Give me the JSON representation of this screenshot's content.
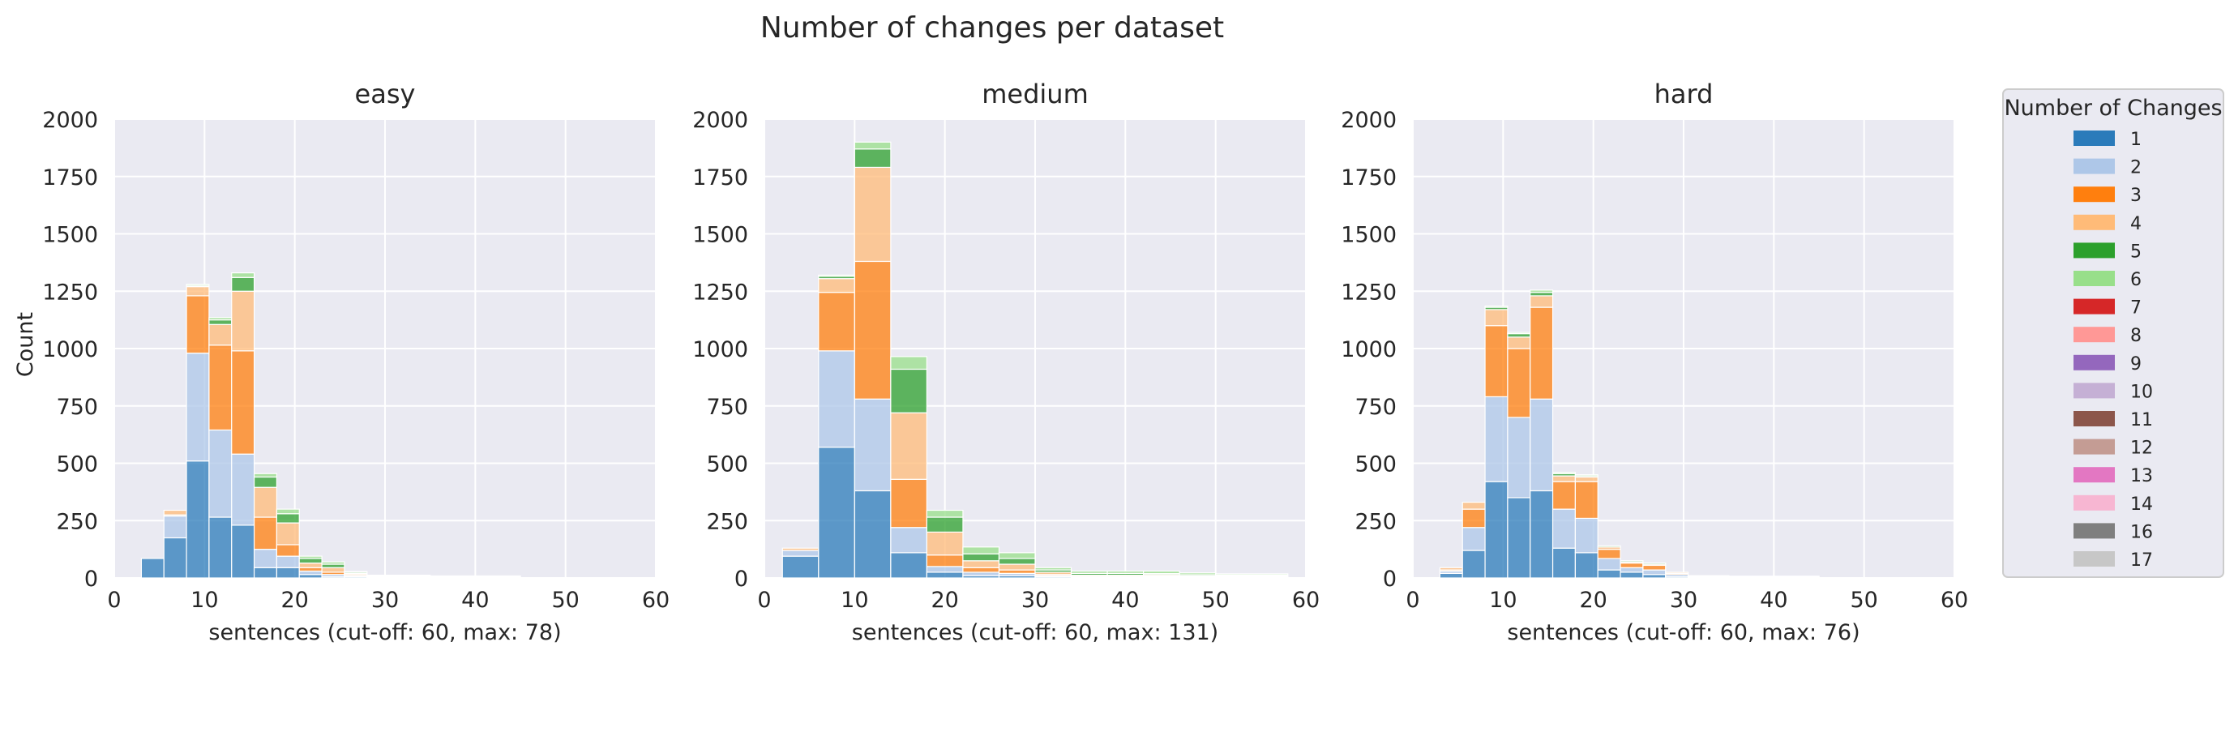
{
  "figure_title": "Number of changes per dataset",
  "chart_data": {
    "type": "bar",
    "stacked": true,
    "suptitle": "Number of changes per dataset",
    "x_range": [
      0,
      60
    ],
    "y_range": [
      0,
      2000
    ],
    "x_ticks": [
      0,
      10,
      20,
      30,
      40,
      50,
      60
    ],
    "y_ticks": [
      0,
      250,
      500,
      750,
      1000,
      1250,
      1500,
      1750,
      2000
    ],
    "ylabel": "Count",
    "grid": true,
    "legend": {
      "title": "Number of Changes",
      "placement": "right",
      "entries": [
        {
          "label": "1",
          "color": "#2b7bba"
        },
        {
          "label": "2",
          "color": "#aec7e8"
        },
        {
          "label": "3",
          "color": "#ff7f0e"
        },
        {
          "label": "4",
          "color": "#ffbb78"
        },
        {
          "label": "5",
          "color": "#2ca02c"
        },
        {
          "label": "6",
          "color": "#98df8a"
        },
        {
          "label": "7",
          "color": "#d62728"
        },
        {
          "label": "8",
          "color": "#ff9896"
        },
        {
          "label": "9",
          "color": "#9467bd"
        },
        {
          "label": "10",
          "color": "#c5b0d5"
        },
        {
          "label": "11",
          "color": "#8c564b"
        },
        {
          "label": "12",
          "color": "#c49c94"
        },
        {
          "label": "13",
          "color": "#e377c2"
        },
        {
          "label": "14",
          "color": "#f7b6d2"
        },
        {
          "label": "16",
          "color": "#7f7f7f"
        },
        {
          "label": "17",
          "color": "#c7c7c7"
        }
      ]
    },
    "panels": [
      {
        "title": "easy",
        "xlabel": "sentences (cut-off: 60, max: 78)",
        "bars": [
          {
            "x0": 3.0,
            "x1": 5.5,
            "stack": [
              85,
              0,
              0,
              0,
              0,
              0
            ]
          },
          {
            "x0": 5.5,
            "x1": 8.0,
            "stack": [
              175,
              95,
              5,
              20,
              0,
              0
            ]
          },
          {
            "x0": 8.0,
            "x1": 10.5,
            "stack": [
              510,
              470,
              250,
              40,
              5,
              5
            ]
          },
          {
            "x0": 10.5,
            "x1": 13.0,
            "stack": [
              265,
              380,
              370,
              90,
              20,
              10
            ]
          },
          {
            "x0": 13.0,
            "x1": 15.5,
            "stack": [
              230,
              310,
              450,
              260,
              60,
              20
            ]
          },
          {
            "x0": 15.5,
            "x1": 18.0,
            "stack": [
              45,
              80,
              140,
              130,
              45,
              15
            ]
          },
          {
            "x0": 18.0,
            "x1": 20.5,
            "stack": [
              45,
              50,
              50,
              95,
              40,
              20
            ]
          },
          {
            "x0": 20.5,
            "x1": 23.0,
            "stack": [
              15,
              15,
              15,
              20,
              20,
              10
            ]
          },
          {
            "x0": 23.0,
            "x1": 25.5,
            "stack": [
              5,
              10,
              10,
              20,
              15,
              10
            ]
          },
          {
            "x0": 25.5,
            "x1": 28.0,
            "stack": [
              5,
              5,
              5,
              5,
              5,
              3
            ]
          },
          {
            "x0": 28.0,
            "x1": 30.5,
            "stack": [
              2,
              2,
              2,
              2,
              2,
              2
            ]
          },
          {
            "x0": 30.5,
            "x1": 35.0,
            "stack": [
              2,
              2,
              2,
              2,
              2,
              2
            ]
          },
          {
            "x0": 35.0,
            "x1": 45.0,
            "stack": [
              2,
              2,
              2,
              1,
              1,
              1
            ]
          }
        ]
      },
      {
        "title": "medium",
        "xlabel": "sentences (cut-off: 60, max: 131)",
        "bars": [
          {
            "x0": 2.0,
            "x1": 6.0,
            "stack": [
              95,
              25,
              0,
              10,
              0,
              0
            ]
          },
          {
            "x0": 6.0,
            "x1": 10.0,
            "stack": [
              570,
              420,
              255,
              60,
              10,
              5
            ]
          },
          {
            "x0": 10.0,
            "x1": 14.0,
            "stack": [
              380,
              400,
              600,
              410,
              80,
              30
            ]
          },
          {
            "x0": 14.0,
            "x1": 18.0,
            "stack": [
              110,
              110,
              210,
              290,
              190,
              55
            ]
          },
          {
            "x0": 18.0,
            "x1": 22.0,
            "stack": [
              25,
              25,
              50,
              100,
              65,
              30
            ]
          },
          {
            "x0": 22.0,
            "x1": 26.0,
            "stack": [
              10,
              15,
              20,
              30,
              30,
              30
            ]
          },
          {
            "x0": 26.0,
            "x1": 30.0,
            "stack": [
              10,
              10,
              15,
              25,
              25,
              25
            ]
          },
          {
            "x0": 30.0,
            "x1": 34.0,
            "stack": [
              5,
              5,
              5,
              10,
              10,
              10
            ]
          },
          {
            "x0": 34.0,
            "x1": 38.0,
            "stack": [
              2,
              2,
              3,
              5,
              8,
              10
            ]
          },
          {
            "x0": 38.0,
            "x1": 42.0,
            "stack": [
              2,
              2,
              3,
              5,
              8,
              10
            ]
          },
          {
            "x0": 42.0,
            "x1": 46.0,
            "stack": [
              3,
              3,
              3,
              5,
              5,
              11
            ]
          },
          {
            "x0": 46.0,
            "x1": 50.0,
            "stack": [
              2,
              2,
              2,
              3,
              5,
              8
            ]
          },
          {
            "x0": 50.0,
            "x1": 58.0,
            "stack": [
              2,
              2,
              2,
              3,
              4,
              5
            ]
          }
        ]
      },
      {
        "title": "hard",
        "xlabel": "sentences (cut-off: 60, max: 76)",
        "bars": [
          {
            "x0": 3.0,
            "x1": 5.5,
            "stack": [
              20,
              10,
              5,
              10,
              0,
              0
            ]
          },
          {
            "x0": 5.5,
            "x1": 8.0,
            "stack": [
              120,
              100,
              80,
              30,
              0,
              0
            ]
          },
          {
            "x0": 8.0,
            "x1": 10.5,
            "stack": [
              420,
              370,
              310,
              70,
              10,
              5
            ]
          },
          {
            "x0": 10.5,
            "x1": 13.0,
            "stack": [
              350,
              350,
              300,
              50,
              15,
              5
            ]
          },
          {
            "x0": 13.0,
            "x1": 15.5,
            "stack": [
              380,
              400,
              400,
              50,
              15,
              10
            ]
          },
          {
            "x0": 15.5,
            "x1": 18.0,
            "stack": [
              130,
              170,
              120,
              25,
              10,
              5
            ]
          },
          {
            "x0": 18.0,
            "x1": 20.5,
            "stack": [
              110,
              150,
              160,
              20,
              5,
              5
            ]
          },
          {
            "x0": 20.5,
            "x1": 23.0,
            "stack": [
              35,
              50,
              40,
              10,
              5,
              0
            ]
          },
          {
            "x0": 23.0,
            "x1": 25.5,
            "stack": [
              25,
              20,
              20,
              5,
              5,
              0
            ]
          },
          {
            "x0": 25.5,
            "x1": 28.0,
            "stack": [
              15,
              20,
              20,
              5,
              5,
              0
            ]
          },
          {
            "x0": 28.0,
            "x1": 30.5,
            "stack": [
              5,
              10,
              5,
              5,
              0,
              0
            ]
          },
          {
            "x0": 30.5,
            "x1": 35.0,
            "stack": [
              2,
              2,
              2,
              2,
              1,
              1
            ]
          },
          {
            "x0": 35.0,
            "x1": 45.0,
            "stack": [
              2,
              2,
              1,
              1,
              1,
              1
            ]
          }
        ]
      }
    ]
  }
}
